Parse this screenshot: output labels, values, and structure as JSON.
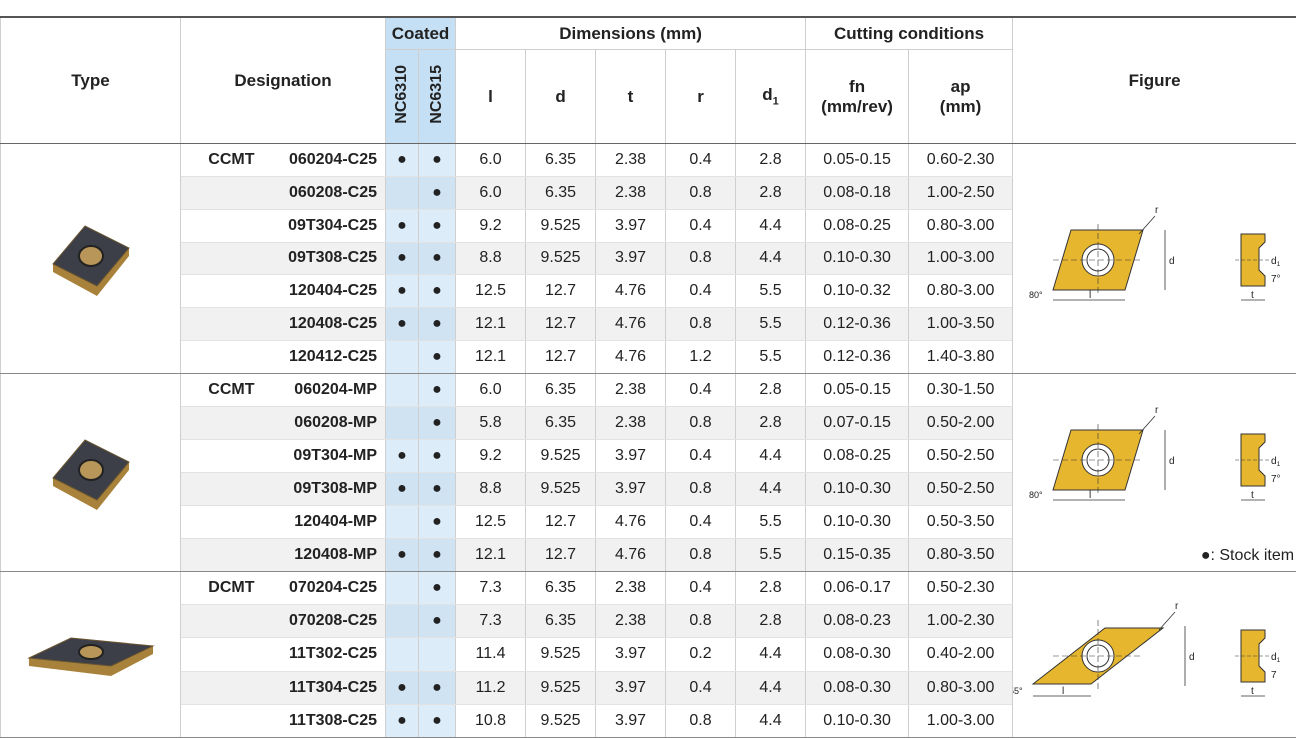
{
  "header": {
    "type": "Type",
    "designation": "Designation",
    "coated": "Coated",
    "grades": [
      "NC6310",
      "NC6315"
    ],
    "dimensions": "Dimensions (mm)",
    "dims": [
      "l",
      "d",
      "t",
      "r",
      {
        "base": "d",
        "sub": "1"
      }
    ],
    "cutting": "Cutting conditions",
    "fn": [
      "fn",
      "(mm/rev)"
    ],
    "ap": [
      "ap",
      "(mm)"
    ],
    "figure": "Figure"
  },
  "groups": [
    {
      "figure": {
        "r": "r",
        "d": "d",
        "d1": {
          "base": "d",
          "sub": "1"
        },
        "angle": "80°",
        "side_angle": "7°",
        "l": "l",
        "t": "t"
      },
      "rows": [
        [
          "CCMT",
          "060204-C25",
          "●",
          "●",
          "6.0",
          "6.35",
          "2.38",
          "0.4",
          "2.8",
          "0.05-0.15",
          "0.60-2.30"
        ],
        [
          null,
          "060208-C25",
          null,
          "●",
          "6.0",
          "6.35",
          "2.38",
          "0.8",
          "2.8",
          "0.08-0.18",
          "1.00-2.50"
        ],
        [
          null,
          "09T304-C25",
          "●",
          "●",
          "9.2",
          "9.525",
          "3.97",
          "0.4",
          "4.4",
          "0.08-0.25",
          "0.80-3.00"
        ],
        [
          null,
          "09T308-C25",
          "●",
          "●",
          "8.8",
          "9.525",
          "3.97",
          "0.8",
          "4.4",
          "0.10-0.30",
          "1.00-3.00"
        ],
        [
          null,
          "120404-C25",
          "●",
          "●",
          "12.5",
          "12.7",
          "4.76",
          "0.4",
          "5.5",
          "0.10-0.32",
          "0.80-3.00"
        ],
        [
          null,
          "120408-C25",
          "●",
          "●",
          "12.1",
          "12.7",
          "4.76",
          "0.8",
          "5.5",
          "0.12-0.36",
          "1.00-3.50"
        ],
        [
          null,
          "120412-C25",
          null,
          "●",
          "12.1",
          "12.7",
          "4.76",
          "1.2",
          "5.5",
          "0.12-0.36",
          "1.40-3.80"
        ]
      ]
    },
    {
      "figure": {
        "r": "r",
        "d": "d",
        "d1": {
          "base": "d",
          "sub": "1"
        },
        "angle": "80°",
        "side_angle": "7°",
        "l": "l",
        "t": "t"
      },
      "note": "●: Stock item",
      "rows": [
        [
          "CCMT",
          "060204-MP",
          null,
          "●",
          "6.0",
          "6.35",
          "2.38",
          "0.4",
          "2.8",
          "0.05-0.15",
          "0.30-1.50"
        ],
        [
          null,
          "060208-MP",
          null,
          "●",
          "5.8",
          "6.35",
          "2.38",
          "0.8",
          "2.8",
          "0.07-0.15",
          "0.50-2.00"
        ],
        [
          null,
          "09T304-MP",
          "●",
          "●",
          "9.2",
          "9.525",
          "3.97",
          "0.4",
          "4.4",
          "0.08-0.25",
          "0.50-2.50"
        ],
        [
          null,
          "09T308-MP",
          "●",
          "●",
          "8.8",
          "9.525",
          "3.97",
          "0.8",
          "4.4",
          "0.10-0.30",
          "0.50-2.50"
        ],
        [
          null,
          "120404-MP",
          null,
          "●",
          "12.5",
          "12.7",
          "4.76",
          "0.4",
          "5.5",
          "0.10-0.30",
          "0.50-3.50"
        ],
        [
          null,
          "120408-MP",
          "●",
          "●",
          "12.1",
          "12.7",
          "4.76",
          "0.8",
          "5.5",
          "0.15-0.35",
          "0.80-3.50"
        ]
      ]
    },
    {
      "figure": {
        "r": "r",
        "d": "d",
        "d1": {
          "base": "d",
          "sub": "1"
        },
        "angle": "55°",
        "side_angle": "7",
        "l": "l",
        "t": "t"
      },
      "rows": [
        [
          "DCMT",
          "070204-C25",
          null,
          "●",
          "7.3",
          "6.35",
          "2.38",
          "0.4",
          "2.8",
          "0.06-0.17",
          "0.50-2.30"
        ],
        [
          null,
          "070208-C25",
          null,
          "●",
          "7.3",
          "6.35",
          "2.38",
          "0.8",
          "2.8",
          "0.08-0.23",
          "1.00-2.30"
        ],
        [
          null,
          "11T302-C25",
          null,
          null,
          "11.4",
          "9.525",
          "3.97",
          "0.2",
          "4.4",
          "0.08-0.30",
          "0.40-2.00"
        ],
        [
          null,
          "11T304-C25",
          "●",
          "●",
          "11.2",
          "9.525",
          "3.97",
          "0.4",
          "4.4",
          "0.08-0.30",
          "0.80-3.00"
        ],
        [
          null,
          "11T308-C25",
          "●",
          "●",
          "10.8",
          "9.525",
          "3.97",
          "0.8",
          "4.4",
          "0.10-0.30",
          "1.00-3.00"
        ]
      ]
    }
  ]
}
